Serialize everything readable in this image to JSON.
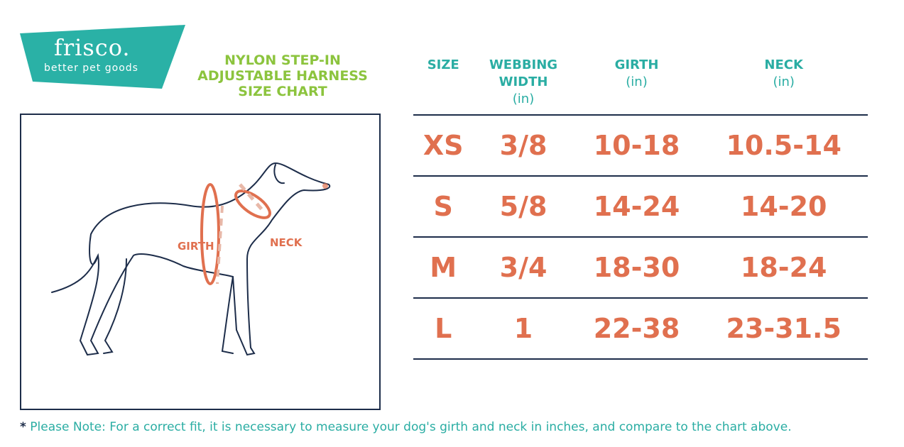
{
  "brand": {
    "name": "frisco.",
    "tagline": "better pet goods",
    "color": "#2ab1a6"
  },
  "title": [
    "NYLON STEP-IN",
    "ADJUSTABLE HARNESS",
    "SIZE CHART"
  ],
  "diagram": {
    "girth_label": "GIRTH",
    "neck_label": "NECK"
  },
  "table": {
    "headers": [
      {
        "label": "SIZE",
        "unit": ""
      },
      {
        "label": "WEBBING WIDTH",
        "unit": "(in)"
      },
      {
        "label": "GIRTH",
        "unit": "(in)"
      },
      {
        "label": "NECK",
        "unit": "(in)"
      }
    ],
    "rows": [
      [
        "XS",
        "3/8",
        "10-18",
        "10.5-14"
      ],
      [
        "S",
        "5/8",
        "14-24",
        "14-20"
      ],
      [
        "M",
        "3/4",
        "18-30",
        "18-24"
      ],
      [
        "L",
        "1",
        "22-38",
        "23-31.5"
      ]
    ]
  },
  "note": {
    "star": "*",
    "text": "Please Note: For a correct fit, it is necessary to measure your dog's girth and neck in inches, and compare to the chart above."
  },
  "colors": {
    "teal": "#2ab1a6",
    "green": "#8cc43e",
    "orange": "#e0704f",
    "navy": "#1d2d4a"
  }
}
